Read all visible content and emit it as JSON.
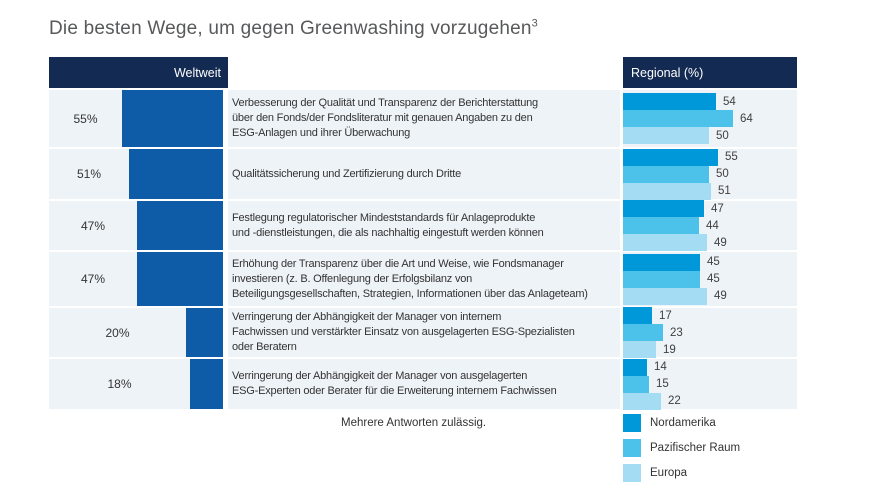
{
  "title": {
    "text": "Die besten Wege, um gegen Greenwashing vorzugehen",
    "footnote_marker": "3"
  },
  "table": {
    "left_header": "Weltweit",
    "right_header": "Regional (%)"
  },
  "footnote": "Mehrere Antworten zulässig.",
  "legend": [
    {
      "label": "Nordamerika",
      "color": "#0098d8"
    },
    {
      "label": "Pazifischer Raum",
      "color": "#4cc1e9"
    },
    {
      "label": "Europa",
      "color": "#a4dcf4"
    }
  ],
  "colors": {
    "header_navy": "#132a52",
    "weltweit_bar": "#0e5ba7",
    "row_background": "#eef3f8",
    "nordamerika": "#0098d8",
    "pazifischer_raum": "#4cc1e9",
    "europa": "#a4dcf4"
  },
  "chart_data": {
    "type": "bar",
    "title": "Die besten Wege, um gegen Greenwashing vorzugehen",
    "note": "Mehrere Antworten zulässig.",
    "weltweit_axis_label": "Weltweit",
    "regional_axis_label": "Regional (%)",
    "categories": [
      "Verbesserung der Qualität und Transparenz der Berichterstattung\nüber den Fonds/der Fondsliteratur mit genauen Angaben zu den\nESG-Anlagen und ihrer Überwachung",
      "Qualitätssicherung und Zertifizierung durch Dritte",
      "Festlegung regulatorischer Mindeststandards für Anlageprodukte\nund -dienstleistungen, die als nachhaltig eingestuft werden können",
      "Erhöhung der Transparenz über die Art und Weise, wie Fondsmanager\ninvestieren (z. B. Offenlegung der Erfolgsbilanz von\nBeteiligungsgesellschaften, Strategien, Informationen über das Anlageteam)",
      "Verringerung der Abhängigkeit der Manager von internem\nFachwissen und verstärkter Einsatz von ausgelagerten ESG-Spezialisten\noder Beratern",
      "Verringerung der Abhängigkeit der Manager von ausgelagerten\nESG-Experten oder Berater für die Erweiterung internem Fachwissen"
    ],
    "weltweit_values_pct": [
      55,
      51,
      47,
      47,
      20,
      18
    ],
    "series": [
      {
        "name": "Nordamerika",
        "values": [
          54,
          55,
          47,
          45,
          17,
          14
        ]
      },
      {
        "name": "Pazifischer Raum",
        "values": [
          64,
          50,
          44,
          45,
          23,
          15
        ]
      },
      {
        "name": "Europa",
        "values": [
          50,
          51,
          49,
          49,
          19,
          22
        ]
      }
    ],
    "value_unit": "%",
    "legend_position": "bottom-right"
  }
}
